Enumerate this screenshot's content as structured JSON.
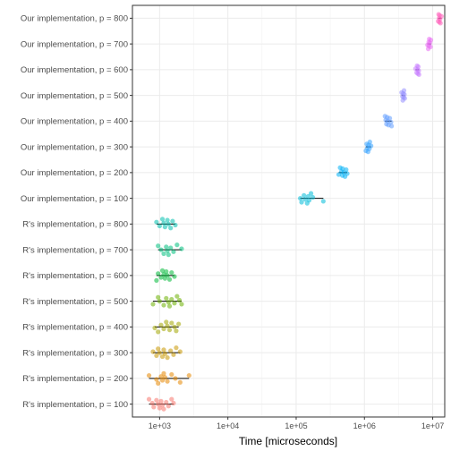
{
  "chart_data": {
    "type": "scatter",
    "title": "",
    "xlabel": "Time [microseconds]",
    "ylabel": "",
    "x_scale": "log10",
    "xlim": [
      400,
      15000000
    ],
    "x_ticks": [
      {
        "value": 1000,
        "label": "1e+03"
      },
      {
        "value": 10000,
        "label": "1e+04"
      },
      {
        "value": 100000,
        "label": "1e+05"
      },
      {
        "value": 1000000,
        "label": "1e+06"
      },
      {
        "value": 10000000,
        "label": "1e+07"
      }
    ],
    "grid": true,
    "legend": "none",
    "categories": [
      "R's  implementation, p = 100",
      "R's implementation, p = 200",
      "R's implementation, p = 300",
      "R's implementation, p = 400",
      "R's implementation, p = 500",
      "R's implementation, p = 600",
      "R's implementation, p = 700",
      "R's implementation, p = 800",
      "Our implementation, p = 100",
      "Our implementation, p = 200",
      "Our implementation, p = 300",
      "Our implementation, p = 400",
      "Our implementation, p = 500",
      "Our implementation, p = 600",
      "Our implementation, p = 700",
      "Our implementation, p = 800"
    ],
    "series": [
      {
        "color": "#F8766D",
        "median": 1050,
        "range": [
          700,
          1600
        ],
        "values": [
          700,
          780,
          820,
          900,
          950,
          1000,
          1050,
          1100,
          1150,
          1250,
          1350,
          1500,
          1600
        ]
      },
      {
        "color": "#E58700",
        "median": 1200,
        "range": [
          700,
          2700
        ],
        "values": [
          700,
          900,
          950,
          1050,
          1100,
          1150,
          1200,
          1300,
          1500,
          1700,
          2000,
          2700
        ]
      },
      {
        "color": "#C99800",
        "median": 1150,
        "range": [
          800,
          2000
        ],
        "values": [
          800,
          900,
          950,
          1000,
          1100,
          1150,
          1200,
          1300,
          1450,
          1600,
          1750,
          2000
        ]
      },
      {
        "color": "#A3A500",
        "median": 1300,
        "range": [
          850,
          1900
        ],
        "values": [
          850,
          950,
          1050,
          1150,
          1250,
          1300,
          1400,
          1500,
          1650,
          1750,
          1900
        ]
      },
      {
        "color": "#6BB100",
        "median": 1400,
        "range": [
          800,
          2100
        ],
        "values": [
          800,
          950,
          1000,
          1150,
          1250,
          1350,
          1400,
          1500,
          1650,
          1800,
          1950,
          2100
        ]
      },
      {
        "color": "#00BA38",
        "median": 1200,
        "range": [
          900,
          1650
        ],
        "values": [
          900,
          950,
          1050,
          1100,
          1150,
          1200,
          1250,
          1300,
          1400,
          1500,
          1650
        ]
      },
      {
        "color": "#00BF7D",
        "median": 1350,
        "range": [
          950,
          2100
        ],
        "values": [
          950,
          1050,
          1150,
          1250,
          1300,
          1350,
          1450,
          1600,
          1800,
          2100
        ]
      },
      {
        "color": "#00C0AF",
        "median": 1300,
        "range": [
          900,
          1700
        ],
        "values": [
          900,
          1000,
          1100,
          1150,
          1200,
          1300,
          1350,
          1450,
          1550,
          1700
        ]
      },
      {
        "color": "#00BCD8",
        "median": 150000,
        "range": [
          115000,
          250000
        ],
        "values": [
          115000,
          120000,
          130000,
          135000,
          145000,
          150000,
          155000,
          165000,
          175000,
          250000
        ]
      },
      {
        "color": "#00B0F6",
        "median": 480000,
        "range": [
          420000,
          560000
        ],
        "values": [
          420000,
          440000,
          460000,
          475000,
          480000,
          500000,
          520000,
          540000,
          560000
        ]
      },
      {
        "color": "#35A2FF",
        "median": 1150000,
        "range": [
          1050000,
          1250000
        ],
        "values": [
          1050000,
          1080000,
          1100000,
          1130000,
          1150000,
          1180000,
          1200000,
          1250000
        ]
      },
      {
        "color": "#619CFF",
        "median": 2200000,
        "range": [
          2000000,
          2500000
        ],
        "values": [
          2000000,
          2050000,
          2100000,
          2150000,
          2200000,
          2250000,
          2350000,
          2450000,
          2500000
        ]
      },
      {
        "color": "#9590FF",
        "median": 3700000,
        "range": [
          3500000,
          3900000
        ],
        "values": [
          3500000,
          3600000,
          3650000,
          3700000,
          3750000,
          3800000,
          3850000,
          3900000
        ]
      },
      {
        "color": "#C77CFF",
        "median": 6000000,
        "range": [
          5600000,
          6300000
        ],
        "values": [
          5600000,
          5800000,
          5900000,
          6000000,
          6050000,
          6150000,
          6250000,
          6300000
        ]
      },
      {
        "color": "#E76BF3",
        "median": 8800000,
        "range": [
          8400000,
          9400000
        ],
        "values": [
          8400000,
          8600000,
          8750000,
          8800000,
          8900000,
          9100000,
          9300000,
          9400000
        ]
      },
      {
        "color": "#FF62BC",
        "median": 12500000,
        "range": [
          12000000,
          13500000
        ],
        "values": [
          12000000,
          12200000,
          12400000,
          12500000,
          12600000,
          12800000,
          13000000,
          13500000
        ]
      }
    ]
  }
}
